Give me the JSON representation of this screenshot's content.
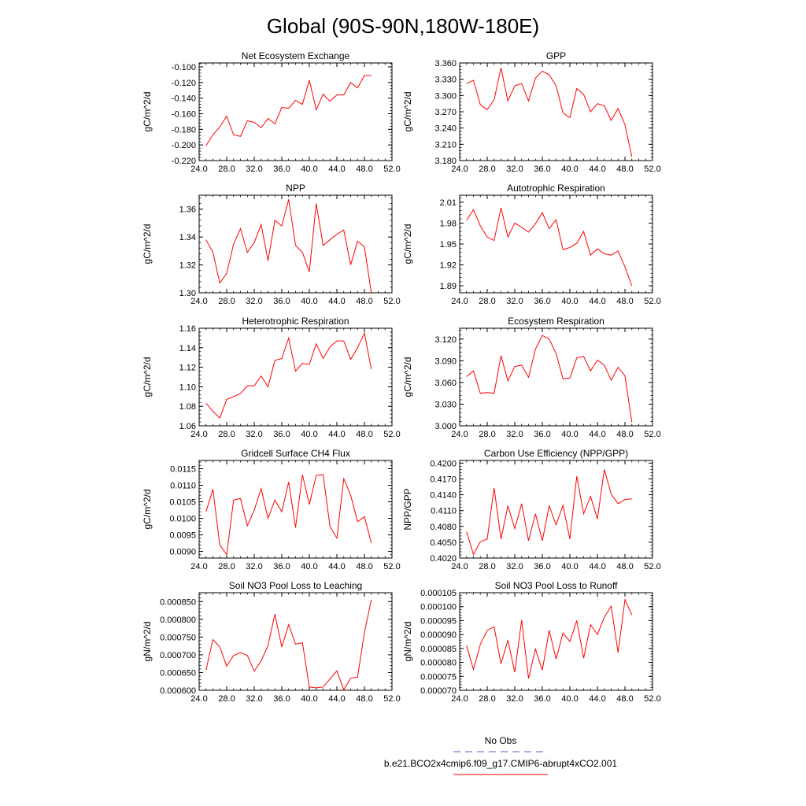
{
  "title": "Global (90S-90N,180W-180E)",
  "colors": {
    "series": "#ff0000",
    "obs": "#5a5ad0",
    "axis": "#000000"
  },
  "legend": {
    "obs_label": "No Obs",
    "case_label": "b.e21.BCO2x4cmip6.f09_g17.CMIP6-abrupt4xCO2.001"
  },
  "chart_data": [
    {
      "type": "line",
      "title": "Net Ecosystem Exchange",
      "ylabel": "gC/m^2/d",
      "xlim": [
        24,
        52
      ],
      "ylim": [
        -0.22,
        -0.095
      ],
      "xticks": [
        24,
        28,
        32,
        36,
        40,
        44,
        48,
        52
      ],
      "xtick_labels": [
        "24.0",
        "28.0",
        "32.0",
        "36.0",
        "40.0",
        "44.0",
        "48.0",
        "52.0"
      ],
      "yticks": [
        -0.22,
        -0.2,
        -0.18,
        -0.16,
        -0.14,
        -0.12,
        -0.1
      ],
      "ytick_labels": [
        "-0.220",
        "-0.200",
        "-0.180",
        "-0.160",
        "-0.140",
        "-0.120",
        "-0.100"
      ],
      "x": [
        25,
        26,
        27,
        28,
        29,
        30,
        31,
        32,
        33,
        34,
        35,
        36,
        37,
        38,
        39,
        40,
        41,
        42,
        43,
        44,
        45,
        46,
        47,
        48,
        49
      ],
      "y": [
        -0.201,
        -0.187,
        -0.177,
        -0.163,
        -0.187,
        -0.189,
        -0.169,
        -0.171,
        -0.178,
        -0.166,
        -0.173,
        -0.152,
        -0.153,
        -0.143,
        -0.148,
        -0.117,
        -0.155,
        -0.135,
        -0.144,
        -0.136,
        -0.136,
        -0.12,
        -0.127,
        -0.111,
        -0.111
      ]
    },
    {
      "type": "line",
      "title": "GPP",
      "ylabel": "gC/m^2/d",
      "xlim": [
        24,
        52
      ],
      "ylim": [
        3.18,
        3.36
      ],
      "xticks": [
        24,
        28,
        32,
        36,
        40,
        44,
        48,
        52
      ],
      "xtick_labels": [
        "24.0",
        "28.0",
        "32.0",
        "36.0",
        "40.0",
        "44.0",
        "48.0",
        "52.0"
      ],
      "yticks": [
        3.18,
        3.21,
        3.24,
        3.27,
        3.3,
        3.33,
        3.36
      ],
      "ytick_labels": [
        "3.180",
        "3.210",
        "3.240",
        "3.270",
        "3.300",
        "3.330",
        "3.360"
      ],
      "x": [
        25,
        26,
        27,
        28,
        29,
        30,
        31,
        32,
        33,
        34,
        35,
        36,
        37,
        38,
        39,
        40,
        41,
        42,
        43,
        44,
        45,
        46,
        47,
        48,
        49
      ],
      "y": [
        3.322,
        3.328,
        3.283,
        3.274,
        3.292,
        3.351,
        3.29,
        3.318,
        3.322,
        3.29,
        3.332,
        3.345,
        3.338,
        3.318,
        3.268,
        3.259,
        3.313,
        3.302,
        3.27,
        3.285,
        3.281,
        3.254,
        3.276,
        3.246,
        3.187
      ]
    },
    {
      "type": "line",
      "title": "NPP",
      "ylabel": "gC/m^2/d",
      "xlim": [
        24,
        52
      ],
      "ylim": [
        1.3,
        1.37
      ],
      "xticks": [
        24,
        28,
        32,
        36,
        40,
        44,
        48,
        52
      ],
      "xtick_labels": [
        "24.0",
        "28.0",
        "32.0",
        "36.0",
        "40.0",
        "44.0",
        "48.0",
        "52.0"
      ],
      "yticks": [
        1.3,
        1.32,
        1.34,
        1.36
      ],
      "ytick_labels": [
        "1.30",
        "1.32",
        "1.34",
        "1.36"
      ],
      "x": [
        25,
        26,
        27,
        28,
        29,
        30,
        31,
        32,
        33,
        34,
        35,
        36,
        37,
        38,
        39,
        40,
        41,
        42,
        43,
        44,
        45,
        46,
        47,
        48,
        49
      ],
      "y": [
        1.338,
        1.329,
        1.307,
        1.314,
        1.335,
        1.346,
        1.329,
        1.336,
        1.349,
        1.323,
        1.352,
        1.348,
        1.367,
        1.334,
        1.329,
        1.315,
        1.364,
        1.334,
        1.338,
        1.342,
        1.345,
        1.32,
        1.337,
        1.333,
        1.3
      ]
    },
    {
      "type": "line",
      "title": "Autotrophic Respiration",
      "ylabel": "gC/m^2/d",
      "xlim": [
        24,
        52
      ],
      "ylim": [
        1.88,
        2.02
      ],
      "xticks": [
        24,
        28,
        32,
        36,
        40,
        44,
        48,
        52
      ],
      "xtick_labels": [
        "24.0",
        "28.0",
        "32.0",
        "36.0",
        "40.0",
        "44.0",
        "48.0",
        "52.0"
      ],
      "yticks": [
        1.89,
        1.92,
        1.95,
        1.98,
        2.01
      ],
      "ytick_labels": [
        "1.89",
        "1.92",
        "1.95",
        "1.98",
        "2.01"
      ],
      "x": [
        25,
        26,
        27,
        28,
        29,
        30,
        31,
        32,
        33,
        34,
        35,
        36,
        37,
        38,
        39,
        40,
        41,
        42,
        43,
        44,
        45,
        46,
        47,
        48,
        49
      ],
      "y": [
        1.984,
        1.999,
        1.976,
        1.96,
        1.955,
        2.002,
        1.96,
        1.98,
        1.974,
        1.967,
        1.979,
        1.995,
        1.972,
        1.985,
        1.942,
        1.945,
        1.951,
        1.968,
        1.934,
        1.943,
        1.936,
        1.934,
        1.94,
        1.917,
        1.89
      ]
    },
    {
      "type": "line",
      "title": "Heterotrophic Respiration",
      "ylabel": "gC/m^2/d",
      "xlim": [
        24,
        52
      ],
      "ylim": [
        1.06,
        1.16
      ],
      "xticks": [
        24,
        28,
        32,
        36,
        40,
        44,
        48,
        52
      ],
      "xtick_labels": [
        "24.0",
        "28.0",
        "32.0",
        "36.0",
        "40.0",
        "44.0",
        "48.0",
        "52.0"
      ],
      "yticks": [
        1.06,
        1.08,
        1.1,
        1.12,
        1.14,
        1.16
      ],
      "ytick_labels": [
        "1.06",
        "1.08",
        "1.10",
        "1.12",
        "1.14",
        "1.16"
      ],
      "x": [
        25,
        26,
        27,
        28,
        29,
        30,
        31,
        32,
        33,
        34,
        35,
        36,
        37,
        38,
        39,
        40,
        41,
        42,
        43,
        44,
        45,
        46,
        47,
        48,
        49
      ],
      "y": [
        1.083,
        1.075,
        1.068,
        1.087,
        1.09,
        1.093,
        1.101,
        1.101,
        1.111,
        1.1,
        1.127,
        1.129,
        1.15,
        1.116,
        1.124,
        1.123,
        1.144,
        1.129,
        1.141,
        1.147,
        1.147,
        1.128,
        1.14,
        1.155,
        1.118
      ]
    },
    {
      "type": "line",
      "title": "Ecosystem Respiration",
      "ylabel": "gC/m^2/d",
      "xlim": [
        24,
        52
      ],
      "ylim": [
        3.0,
        3.135
      ],
      "xticks": [
        24,
        28,
        32,
        36,
        40,
        44,
        48,
        52
      ],
      "xtick_labels": [
        "24.0",
        "28.0",
        "32.0",
        "36.0",
        "40.0",
        "44.0",
        "48.0",
        "52.0"
      ],
      "yticks": [
        3.0,
        3.03,
        3.06,
        3.09,
        3.12
      ],
      "ytick_labels": [
        "3.000",
        "3.030",
        "3.060",
        "3.090",
        "3.120"
      ],
      "x": [
        25,
        26,
        27,
        28,
        29,
        30,
        31,
        32,
        33,
        34,
        35,
        36,
        37,
        38,
        39,
        40,
        41,
        42,
        43,
        44,
        45,
        46,
        47,
        48,
        49
      ],
      "y": [
        3.068,
        3.076,
        3.045,
        3.046,
        3.045,
        3.097,
        3.062,
        3.082,
        3.084,
        3.067,
        3.106,
        3.125,
        3.12,
        3.1,
        3.065,
        3.066,
        3.094,
        3.096,
        3.076,
        3.091,
        3.084,
        3.063,
        3.081,
        3.069,
        3.005
      ]
    },
    {
      "type": "line",
      "title": "Gridcell Surface CH4 Flux",
      "ylabel": "gC/m^2/d",
      "xlim": [
        24,
        52
      ],
      "ylim": [
        0.0088,
        0.01175
      ],
      "xticks": [
        24,
        28,
        32,
        36,
        40,
        44,
        48,
        52
      ],
      "xtick_labels": [
        "24.0",
        "28.0",
        "32.0",
        "36.0",
        "40.0",
        "44.0",
        "48.0",
        "52.0"
      ],
      "yticks": [
        0.009,
        0.0095,
        0.01,
        0.0105,
        0.011,
        0.0115
      ],
      "ytick_labels": [
        "0.0090",
        "0.0095",
        "0.0100",
        "0.0105",
        "0.0110",
        "0.0115"
      ],
      "x": [
        25,
        26,
        27,
        28,
        29,
        30,
        31,
        32,
        33,
        34,
        35,
        36,
        37,
        38,
        39,
        40,
        41,
        42,
        43,
        44,
        45,
        46,
        47,
        48,
        49
      ],
      "y": [
        0.0102,
        0.01088,
        0.0092,
        0.0089,
        0.01055,
        0.0106,
        0.00978,
        0.01025,
        0.0109,
        0.01,
        0.01055,
        0.0102,
        0.0111,
        0.00972,
        0.01132,
        0.01042,
        0.0113,
        0.01132,
        0.00975,
        0.0094,
        0.0112,
        0.0107,
        0.0099,
        0.01005,
        0.00925
      ]
    },
    {
      "type": "line",
      "title": "Carbon Use Efficiency (NPP/GPP)",
      "ylabel": "NPP/GPP",
      "xlim": [
        24,
        52
      ],
      "ylim": [
        0.402,
        0.4205
      ],
      "xticks": [
        24,
        28,
        32,
        36,
        40,
        44,
        48,
        52
      ],
      "xtick_labels": [
        "24.0",
        "28.0",
        "32.0",
        "36.0",
        "40.0",
        "44.0",
        "48.0",
        "52.0"
      ],
      "yticks": [
        0.402,
        0.405,
        0.408,
        0.411,
        0.414,
        0.417,
        0.42
      ],
      "ytick_labels": [
        "0.4020",
        "0.4050",
        "0.4080",
        "0.4110",
        "0.4140",
        "0.4170",
        "0.4200"
      ],
      "x": [
        25,
        26,
        27,
        28,
        29,
        30,
        31,
        32,
        33,
        34,
        35,
        36,
        37,
        38,
        39,
        40,
        41,
        42,
        43,
        44,
        45,
        46,
        47,
        48,
        49
      ],
      "y": [
        0.407,
        0.4027,
        0.4051,
        0.4056,
        0.4153,
        0.4056,
        0.4119,
        0.4076,
        0.4123,
        0.4053,
        0.4104,
        0.4053,
        0.4119,
        0.4083,
        0.412,
        0.4056,
        0.4175,
        0.4104,
        0.4137,
        0.4094,
        0.4188,
        0.4141,
        0.4123,
        0.4131,
        0.4132
      ]
    },
    {
      "type": "line",
      "title": "Soil NO3 Pool Loss to Leaching",
      "ylabel": "gN/m^2/d",
      "xlim": [
        24,
        52
      ],
      "ylim": [
        0.0006,
        0.000875
      ],
      "xticks": [
        24,
        28,
        32,
        36,
        40,
        44,
        48,
        52
      ],
      "xtick_labels": [
        "24.0",
        "28.0",
        "32.0",
        "36.0",
        "40.0",
        "44.0",
        "48.0",
        "52.0"
      ],
      "yticks": [
        0.0006,
        0.00065,
        0.0007,
        0.00075,
        0.0008,
        0.00085
      ],
      "ytick_labels": [
        "0.000600",
        "0.000650",
        "0.000700",
        "0.000750",
        "0.000800",
        "0.000850"
      ],
      "x": [
        25,
        26,
        27,
        28,
        29,
        30,
        31,
        32,
        33,
        34,
        35,
        36,
        37,
        38,
        39,
        40,
        41,
        42,
        43,
        44,
        45,
        46,
        47,
        48,
        49
      ],
      "y": [
        0.000657,
        0.000743,
        0.000722,
        0.000668,
        0.000698,
        0.000706,
        0.000698,
        0.000654,
        0.000683,
        0.000726,
        0.000815,
        0.000722,
        0.000785,
        0.00073,
        0.000734,
        0.000609,
        0.000607,
        0.000609,
        0.000632,
        0.000655,
        0.000601,
        0.000634,
        0.000637,
        0.000763,
        0.000855
      ]
    },
    {
      "type": "line",
      "title": "Soil NO3 Pool Loss to Runoff",
      "ylabel": "gN/m^2/d",
      "xlim": [
        24,
        52
      ],
      "ylim": [
        7e-05,
        0.000105
      ],
      "xticks": [
        24,
        28,
        32,
        36,
        40,
        44,
        48,
        52
      ],
      "xtick_labels": [
        "24.0",
        "28.0",
        "32.0",
        "36.0",
        "40.0",
        "44.0",
        "48.0",
        "52.0"
      ],
      "yticks": [
        7e-05,
        7.5e-05,
        8e-05,
        8.5e-05,
        9e-05,
        9.5e-05,
        0.0001,
        0.000105
      ],
      "ytick_labels": [
        "0.000070",
        "0.000075",
        "0.000080",
        "0.000085",
        "0.000090",
        "0.000095",
        "0.000100",
        "0.000105"
      ],
      "x": [
        25,
        26,
        27,
        28,
        29,
        30,
        31,
        32,
        33,
        34,
        35,
        36,
        37,
        38,
        39,
        40,
        41,
        42,
        43,
        44,
        45,
        46,
        47,
        48,
        49
      ],
      "y": [
        8.6e-05,
        7.75e-05,
        8.65e-05,
        9.15e-05,
        9.28e-05,
        7.95e-05,
        8.8e-05,
        7.65e-05,
        9.52e-05,
        7.42e-05,
        8.48e-05,
        7.72e-05,
        9.15e-05,
        8.12e-05,
        9.05e-05,
        8.75e-05,
        9.5e-05,
        8.15e-05,
        9.35e-05,
        9e-05,
        9.62e-05,
        0.0001002,
        8.35e-05,
        0.0001025,
        9.7e-05
      ]
    }
  ]
}
